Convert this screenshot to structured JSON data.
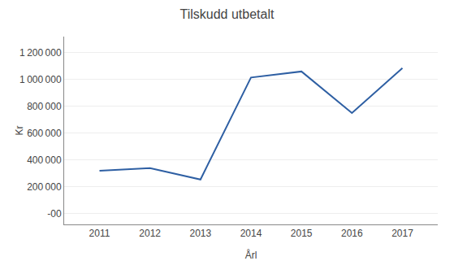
{
  "chart_data": {
    "type": "line",
    "title": "Tilskudd utbetalt",
    "xlabel": "Årl",
    "ylabel": "Kr",
    "x": [
      2011,
      2012,
      2013,
      2014,
      2015,
      2016,
      2017
    ],
    "values": [
      320000,
      340000,
      255000,
      1015000,
      1060000,
      750000,
      1085000
    ],
    "color": "#2E5FA3",
    "xlim": [
      2010.3,
      2017.7
    ],
    "xticks": [
      2011,
      2012,
      2013,
      2014,
      2015,
      2016,
      2017
    ],
    "ylim": [
      -80000,
      1320000
    ],
    "yticks": [
      {
        "value": 0,
        "label": "-00"
      },
      {
        "value": 200000,
        "label": "200 000"
      },
      {
        "value": 400000,
        "label": "400 000"
      },
      {
        "value": 600000,
        "label": "600 000"
      },
      {
        "value": 800000,
        "label": "800 000"
      },
      {
        "value": 1000000,
        "label": "1 000 000"
      },
      {
        "value": 1200000,
        "label": "1 200 000"
      }
    ],
    "grid": true
  }
}
